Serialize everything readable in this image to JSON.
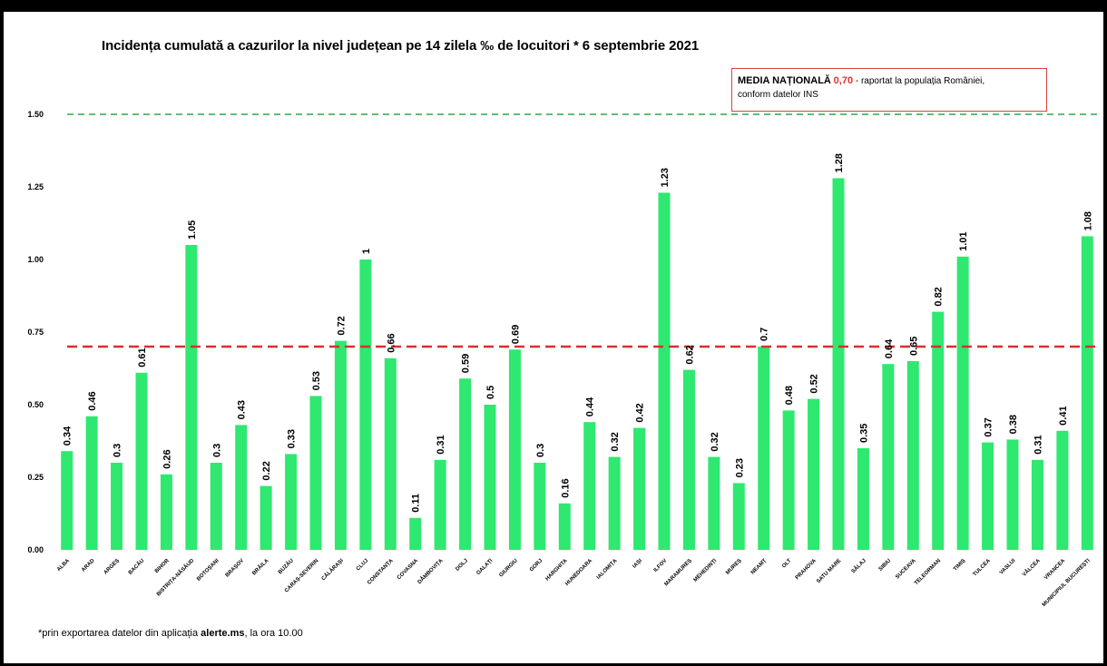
{
  "title": "Incidența cumulată a cazurilor la nivel județean pe 14 zilela ‰ de locuitori * 6 septembrie 2021",
  "national_average": {
    "label": "MEDIA NAȚIONALĂ",
    "value_text": "0,70",
    "desc1": " - raportat la populația României,",
    "desc2": "conform datelor INS"
  },
  "footnote": {
    "prefix": "*prin exportarea datelor din aplicația ",
    "bold": "alerte.ms",
    "suffix": ", la ora 10.00"
  },
  "colors": {
    "bar": "#2ee870",
    "average_line": "#d9302b",
    "threshold_line": "#2aa84a"
  },
  "chart_data": {
    "type": "bar",
    "ylim": [
      0,
      1.5
    ],
    "yticks": [
      "0.00",
      "0.25",
      "0.50",
      "0.75",
      "1.00",
      "1.25",
      "1.50"
    ],
    "ytick_values": [
      0,
      0.25,
      0.5,
      0.75,
      1.0,
      1.25,
      1.5
    ],
    "grid": false,
    "reference_lines": [
      {
        "value": 1.5,
        "style": "dashed",
        "color": "#2aa84a"
      },
      {
        "value": 0.7,
        "style": "dashed",
        "color": "#d9302b"
      }
    ],
    "categories": [
      "ALBA",
      "ARAD",
      "ARGEȘ",
      "BACĂU",
      "BIHOR",
      "BISTRIȚA-NĂSĂUD",
      "BOTOȘANI",
      "BRAȘOV",
      "BRĂILA",
      "BUZĂU",
      "CARAȘ-SEVERIN",
      "CĂLĂRAȘI",
      "CLUJ",
      "CONSTANȚA",
      "COVASNA",
      "DÂMBOVIȚA",
      "DOLJ",
      "GALAȚI",
      "GIURGIU",
      "GORJ",
      "HARGHITA",
      "HUNEDOARA",
      "IALOMIȚA",
      "IAȘI",
      "ILFOV",
      "MARAMUREȘ",
      "MEHEDINȚI",
      "MUREȘ",
      "NEAMȚ",
      "OLT",
      "PRAHOVA",
      "SATU MARE",
      "SĂLAJ",
      "SIBIU",
      "SUCEAVA",
      "TELEORMAN",
      "TIMIȘ",
      "TULCEA",
      "VASLUI",
      "VÂLCEA",
      "VRANCEA",
      "MUNICIPIUL BUCUREȘTI"
    ],
    "values": [
      0.34,
      0.46,
      0.3,
      0.61,
      0.26,
      1.05,
      0.3,
      0.43,
      0.22,
      0.33,
      0.53,
      0.72,
      1,
      0.66,
      0.11,
      0.31,
      0.59,
      0.5,
      0.69,
      0.3,
      0.16,
      0.44,
      0.32,
      0.42,
      1.23,
      0.62,
      0.32,
      0.23,
      0.7,
      0.48,
      0.52,
      1.28,
      0.35,
      0.64,
      0.65,
      0.82,
      1.01,
      0.37,
      0.38,
      0.31,
      0.41,
      1.08
    ],
    "labels": [
      "0.34",
      "0.46",
      "0.3",
      "0.61",
      "0.26",
      "1.05",
      "0.3",
      "0.43",
      "0.22",
      "0.33",
      "0.53",
      "0.72",
      "1",
      "0.66",
      "0.11",
      "0.31",
      "0.59",
      "0.5",
      "0.69",
      "0.3",
      "0.16",
      "0.44",
      "0.32",
      "0.42",
      "1.23",
      "0.62",
      "0.32",
      "0.23",
      "0.7",
      "0.48",
      "0.52",
      "1.28",
      "0.35",
      "0.64",
      "0.65",
      "0.82",
      "1.01",
      "0.37",
      "0.38",
      "0.31",
      "0.41",
      "1.08"
    ]
  }
}
